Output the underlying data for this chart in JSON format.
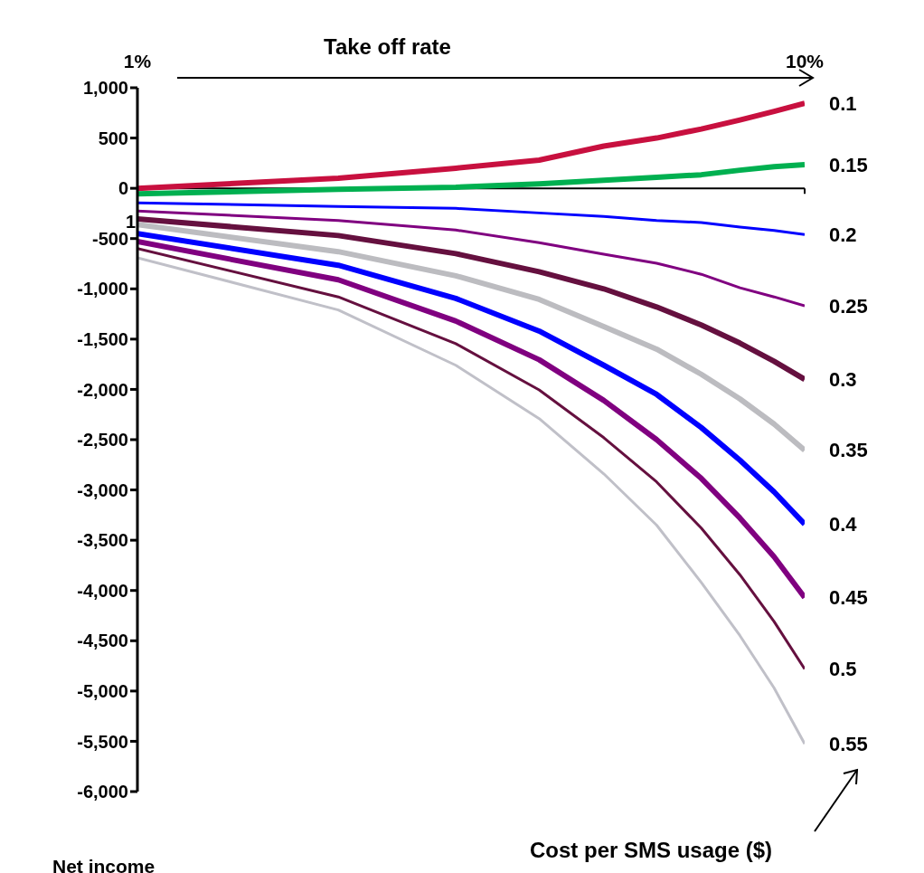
{
  "chart_data": {
    "type": "line",
    "title": "Take off rate",
    "ylabel": "Net income",
    "legend_title": "Cost per SMS usage ($)",
    "xticks": [
      {
        "value": 1,
        "label": "1%"
      },
      {
        "value": 10,
        "label": "10%"
      }
    ],
    "x": [
      1,
      2,
      3,
      4,
      5,
      6,
      7,
      8,
      9,
      10
    ],
    "log": "x",
    "xlim": [
      1,
      10
    ],
    "annotations": [
      "1"
    ],
    "ylim": [
      -6000,
      1000
    ],
    "yticks": [
      {
        "value": 1000,
        "label": "1,000"
      },
      {
        "value": 500,
        "label": "500"
      },
      {
        "value": 0,
        "label": "0"
      },
      {
        "value": -500,
        "label": "-500"
      },
      {
        "value": -1000,
        "label": "-1,000"
      },
      {
        "value": -1500,
        "label": "-1,500"
      },
      {
        "value": -2000,
        "label": "-2,000"
      },
      {
        "value": -2500,
        "label": "-2,500"
      },
      {
        "value": -3000,
        "label": "-3,000"
      },
      {
        "value": -3500,
        "label": "-3,500"
      },
      {
        "value": -4000,
        "label": "-4,000"
      },
      {
        "value": -4500,
        "label": "-4,500"
      },
      {
        "value": -5000,
        "label": "-5,000"
      },
      {
        "value": -5500,
        "label": "-5,500"
      },
      {
        "value": -6000,
        "label": "-6,000"
      }
    ],
    "grid": false,
    "ref_lines": [
      {
        "axis": "y",
        "value": 0,
        "color": "#000000"
      }
    ],
    "legend": "right",
    "marker": "none",
    "line_style": "solid",
    "series": [
      {
        "name": "0.1",
        "color": "#c8103f",
        "values": [
          0,
          100,
          200,
          280,
          420,
          500,
          590,
          680,
          765,
          845
        ]
      },
      {
        "name": "0.15",
        "color": "#00b050",
        "values": [
          -55,
          -10,
          10,
          45,
          80,
          110,
          135,
          180,
          215,
          235
        ]
      },
      {
        "name": "0.2",
        "color": "#0000ff",
        "values": [
          -145,
          -180,
          -200,
          -245,
          -280,
          -320,
          -340,
          -385,
          -420,
          -460
        ]
      },
      {
        "name": "0.25",
        "color": "#800080",
        "values": [
          -225,
          -320,
          -415,
          -540,
          -655,
          -745,
          -855,
          -990,
          -1080,
          -1170
        ]
      },
      {
        "name": "0.3",
        "color": "#65103f",
        "values": [
          -305,
          -470,
          -650,
          -830,
          -1000,
          -1180,
          -1360,
          -1540,
          -1720,
          -1900
        ]
      },
      {
        "name": "0.35",
        "color": "#bcbcc0",
        "values": [
          -360,
          -630,
          -870,
          -1105,
          -1375,
          -1600,
          -1850,
          -2095,
          -2345,
          -2605
        ]
      },
      {
        "name": "0.4",
        "color": "#0000ff",
        "values": [
          -450,
          -765,
          -1095,
          -1420,
          -1760,
          -2050,
          -2380,
          -2705,
          -3020,
          -3340
        ]
      },
      {
        "name": "0.45",
        "color": "#800080",
        "values": [
          -530,
          -910,
          -1320,
          -1705,
          -2110,
          -2500,
          -2885,
          -3280,
          -3665,
          -4070
        ]
      },
      {
        "name": "0.5",
        "color": "#65103f",
        "values": [
          -600,
          -1080,
          -1545,
          -2005,
          -2480,
          -2920,
          -3380,
          -3845,
          -4310,
          -4780
        ]
      },
      {
        "name": "0.55",
        "color": "#c0c0c8",
        "values": [
          -690,
          -1210,
          -1760,
          -2290,
          -2840,
          -3350,
          -3920,
          -4450,
          -4970,
          -5525
        ]
      }
    ]
  }
}
